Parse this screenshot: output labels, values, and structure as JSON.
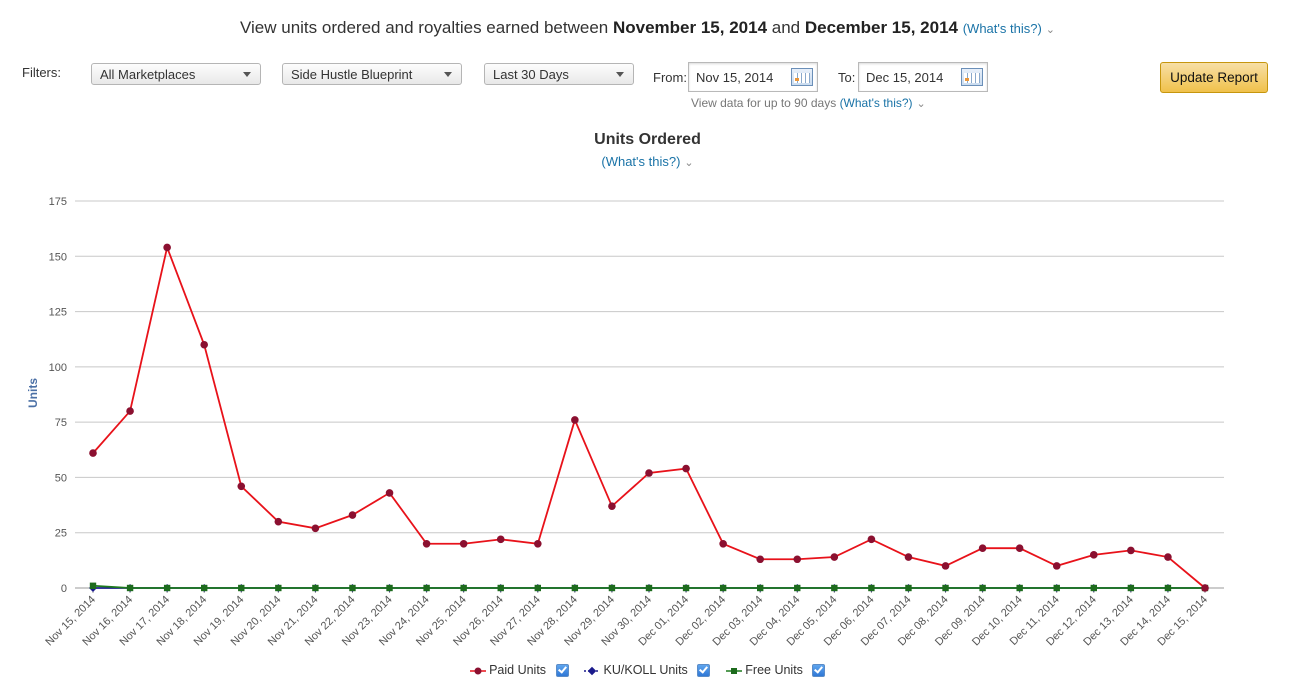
{
  "header": {
    "prefix": "View units ordered and royalties earned between",
    "start": "November 15, 2014",
    "joiner": "and",
    "end": "December 15, 2014",
    "help_link": "(What's this?)"
  },
  "filters": {
    "label": "Filters:",
    "marketplace": "All Marketplaces",
    "title": "Side Hustle Blueprint",
    "range": "Last 30 Days",
    "from_label": "From:",
    "from_value": "Nov 15, 2014",
    "to_label": "To:",
    "to_value": "Dec 15, 2014",
    "update_button": "Update Report",
    "note": "View data for up to 90 days",
    "note_link": "(What's this?)"
  },
  "chart_data": {
    "type": "line",
    "title": "Units Ordered",
    "subtitle_link": "(What's this?)",
    "ylabel": "Units",
    "ylim": [
      0,
      175
    ],
    "yticks": [
      0,
      25,
      50,
      75,
      100,
      125,
      150,
      175
    ],
    "grid": true,
    "legend_position": "bottom",
    "categories": [
      "Nov 15, 2014",
      "Nov 16, 2014",
      "Nov 17, 2014",
      "Nov 18, 2014",
      "Nov 19, 2014",
      "Nov 20, 2014",
      "Nov 21, 2014",
      "Nov 22, 2014",
      "Nov 23, 2014",
      "Nov 24, 2014",
      "Nov 25, 2014",
      "Nov 26, 2014",
      "Nov 27, 2014",
      "Nov 28, 2014",
      "Nov 29, 2014",
      "Nov 30, 2014",
      "Dec 01, 2014",
      "Dec 02, 2014",
      "Dec 03, 2014",
      "Dec 04, 2014",
      "Dec 05, 2014",
      "Dec 06, 2014",
      "Dec 07, 2014",
      "Dec 08, 2014",
      "Dec 09, 2014",
      "Dec 10, 2014",
      "Dec 11, 2014",
      "Dec 12, 2014",
      "Dec 13, 2014",
      "Dec 14, 2014",
      "Dec 15, 2014"
    ],
    "series": [
      {
        "name": "Paid Units",
        "line_color": "#e8121a",
        "marker_color": "#8b1030",
        "marker": "circle",
        "values": [
          61,
          80,
          154,
          110,
          46,
          30,
          27,
          33,
          43,
          20,
          20,
          22,
          20,
          76,
          37,
          52,
          54,
          20,
          13,
          13,
          14,
          22,
          14,
          10,
          18,
          18,
          10,
          15,
          17,
          14,
          0
        ]
      },
      {
        "name": "KU/KOLL Units",
        "line_color": "#1a1a8c",
        "marker_color": "#1a1a8c",
        "marker": "diamond",
        "values": [
          0,
          0,
          0,
          0,
          0,
          0,
          0,
          0,
          0,
          0,
          0,
          0,
          0,
          0,
          0,
          0,
          0,
          0,
          0,
          0,
          0,
          0,
          0,
          0,
          0,
          0,
          0,
          0,
          0,
          0,
          0
        ]
      },
      {
        "name": "Free Units",
        "line_color": "#1d7a1d",
        "marker_color": "#1d6b1d",
        "marker": "square",
        "values": [
          1,
          0,
          0,
          0,
          0,
          0,
          0,
          0,
          0,
          0,
          0,
          0,
          0,
          0,
          0,
          0,
          0,
          0,
          0,
          0,
          0,
          0,
          0,
          0,
          0,
          0,
          0,
          0,
          0,
          0,
          0
        ]
      }
    ]
  }
}
